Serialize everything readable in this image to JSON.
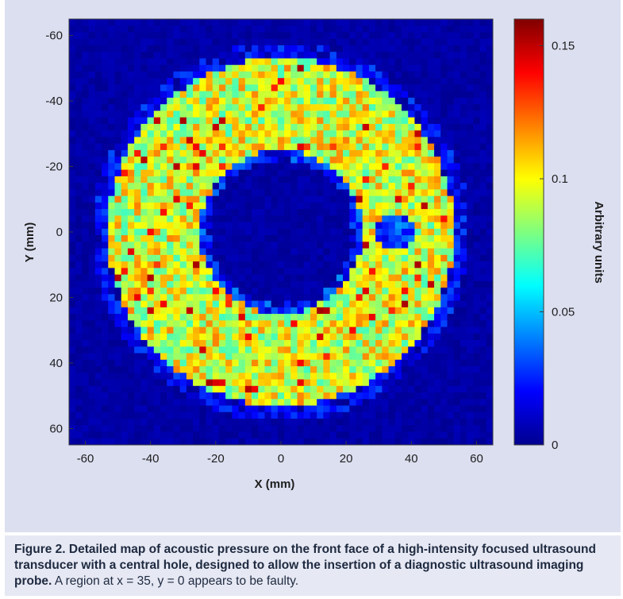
{
  "chart_data": {
    "type": "heatmap",
    "title": "",
    "xlabel": "X (mm)",
    "ylabel": "Y (mm)",
    "xlim": [
      -65,
      65
    ],
    "ylim": [
      -65,
      65
    ],
    "y_inverted": true,
    "x_ticks": [
      "-60",
      "-40",
      "-20",
      "0",
      "20",
      "40",
      "60"
    ],
    "x_tick_values": [
      -60,
      -40,
      -20,
      0,
      20,
      40,
      60
    ],
    "y_ticks": [
      "-60",
      "-40",
      "-20",
      "0",
      "20",
      "40",
      "60"
    ],
    "y_tick_values": [
      -60,
      -40,
      -20,
      0,
      20,
      40,
      60
    ],
    "colorbar": {
      "label": "Arbitrary units",
      "range": [
        0,
        0.16
      ],
      "ticks": [
        "0",
        "0.05",
        "0.1",
        "0.15"
      ],
      "tick_values": [
        0,
        0.05,
        0.1,
        0.15
      ],
      "colormap": "jet"
    },
    "grid": false,
    "field": {
      "shape": "annulus",
      "grid_step_mm": 2,
      "center_mm": [
        0,
        0
      ],
      "inner_radius_mm": 25,
      "outer_radius_mm": 53,
      "ring_mean_value": 0.095,
      "ring_spread": 0.025,
      "background_value": 0.003,
      "faulty_region_mm": [
        35,
        0
      ],
      "faulty_region_value": 0.015
    }
  },
  "caption": {
    "bold": "Figure 2. Detailed map of acoustic pressure on the front face of a high-intensity focused ultrasound transducer with a central hole, designed to allow the insertion of a diagnostic ultrasound imaging probe.",
    "normal": " A region at x = 35, y = 0 appears to be faulty."
  }
}
